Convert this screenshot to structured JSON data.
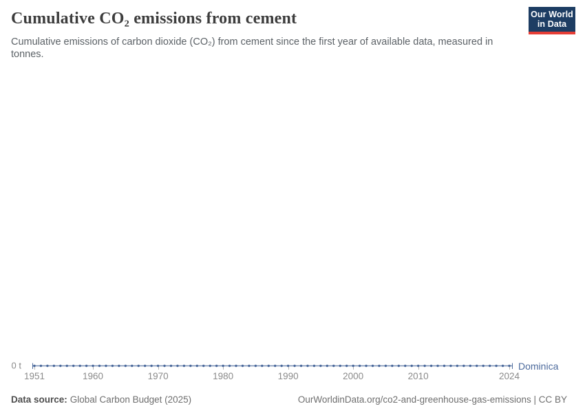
{
  "header": {
    "title": "Cumulative CO₂ emissions from cement",
    "subtitle": "Cumulative emissions of carbon dioxide (CO₂) from cement since the first year of available data, measured in tonnes.",
    "logo": {
      "line1": "Our World",
      "line2": "in Data"
    }
  },
  "chart_data": {
    "type": "line",
    "title": "Cumulative CO₂ emissions from cement",
    "xlabel": "",
    "ylabel": "",
    "x_start": 1951,
    "x_end": 2024,
    "x_step": 1,
    "x_ticks": [
      1951,
      1960,
      1970,
      1980,
      1990,
      2000,
      2010,
      2024
    ],
    "y_zero_label": "0 t",
    "ylim": [
      0,
      0
    ],
    "grid": false,
    "legend_position": "end-of-line",
    "series": [
      {
        "name": "Dominica",
        "color": "#4C6A9C",
        "values": [
          0,
          0,
          0,
          0,
          0,
          0,
          0,
          0,
          0,
          0,
          0,
          0,
          0,
          0,
          0,
          0,
          0,
          0,
          0,
          0,
          0,
          0,
          0,
          0,
          0,
          0,
          0,
          0,
          0,
          0,
          0,
          0,
          0,
          0,
          0,
          0,
          0,
          0,
          0,
          0,
          0,
          0,
          0,
          0,
          0,
          0,
          0,
          0,
          0,
          0,
          0,
          0,
          0,
          0,
          0,
          0,
          0,
          0,
          0,
          0,
          0,
          0,
          0,
          0,
          0,
          0,
          0,
          0,
          0,
          0,
          0,
          0,
          0,
          0
        ]
      }
    ]
  },
  "footer": {
    "source_label": "Data source:",
    "source_value": "Global Carbon Budget (2025)",
    "link": "OurWorldinData.org/co2-and-greenhouse-gas-emissions | CC BY"
  },
  "colors": {
    "accent_blue": "#4C6A9C",
    "logo_navy": "#1d3d63",
    "logo_red": "#e63e36",
    "axis_text": "#8a8a8a",
    "tick_mark": "#b3b3b3"
  }
}
